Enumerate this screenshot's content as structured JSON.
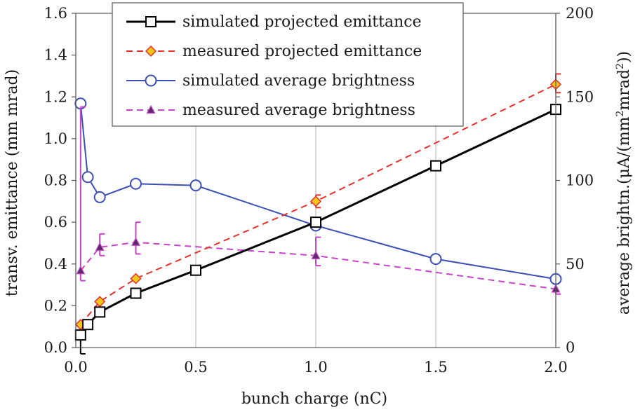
{
  "chart_data": {
    "type": "line",
    "xlabel": "bunch charge (nC)",
    "ylabel": "transv. emittance (mm mrad)",
    "y2label_pre": "average brightn.(",
    "y2label_mu": "μ",
    "y2label_mid": "A/(mm",
    "y2label_sup1": "2",
    "y2label_mid2": "mrad",
    "y2label_sup2": "2",
    "y2label_post": "))",
    "xlim": [
      0,
      2
    ],
    "ylim": [
      0,
      1.6
    ],
    "y2lim": [
      0,
      200
    ],
    "x_ticks": [
      "0.0",
      "0.5",
      "1.0",
      "1.5",
      "2.0"
    ],
    "y_ticks": [
      "0.0",
      "0.2",
      "0.4",
      "0.6",
      "0.8",
      "1.0",
      "1.2",
      "1.4",
      "1.6"
    ],
    "y2_ticks": [
      "0",
      "50",
      "100",
      "150",
      "200"
    ],
    "grid": "vertical",
    "legend_position": "top-left",
    "series": [
      {
        "name": "simulated projected emittance",
        "axis": "left",
        "color": "#000000",
        "line_style": "solid",
        "marker": "square",
        "x": [
          0.02,
          0.05,
          0.1,
          0.25,
          0.5,
          1.0,
          1.5,
          2.0
        ],
        "y": [
          0.06,
          0.11,
          0.17,
          0.26,
          0.37,
          0.6,
          0.87,
          1.14
        ],
        "err_low": [
          0.09,
          0,
          0,
          0,
          0,
          0,
          0,
          0
        ],
        "err_high": [
          0,
          0,
          0,
          0,
          0,
          0,
          0,
          0
        ]
      },
      {
        "name": "measured projected emittance",
        "axis": "left",
        "color": "#e8302a",
        "marker_fill": "#f5c518",
        "line_style": "dashed",
        "marker": "diamond",
        "x": [
          0.02,
          0.1,
          0.25,
          1.0,
          2.0
        ],
        "y": [
          0.11,
          0.22,
          0.33,
          0.7,
          1.26
        ],
        "err_low": [
          0,
          0,
          0,
          0.03,
          0.04
        ],
        "err_high": [
          0,
          0,
          0,
          0.03,
          0.05
        ]
      },
      {
        "name": "simulated average brightness",
        "axis": "right",
        "color": "#3b4fb5",
        "line_style": "solid",
        "marker": "circle",
        "x": [
          0.02,
          0.05,
          0.1,
          0.25,
          0.5,
          1.0,
          1.5,
          2.0
        ],
        "y": [
          146,
          102,
          90,
          98,
          97,
          73,
          53,
          41
        ],
        "err_low": [
          0,
          0,
          0,
          0,
          0,
          0,
          0,
          0
        ],
        "err_high": [
          0,
          0,
          0,
          0,
          0,
          0,
          0,
          0
        ]
      },
      {
        "name": "measured average brightness",
        "axis": "right",
        "color": "#c844c8",
        "marker_fill": "#5a2a6a",
        "line_style": "dashed",
        "marker": "triangle",
        "x": [
          0.02,
          0.1,
          0.25,
          1.0,
          2.0
        ],
        "y": [
          46,
          60,
          63,
          55,
          35
        ],
        "err_low": [
          6,
          5,
          7,
          6,
          3
        ],
        "err_high": [
          98,
          8,
          12,
          11,
          0
        ]
      }
    ]
  }
}
